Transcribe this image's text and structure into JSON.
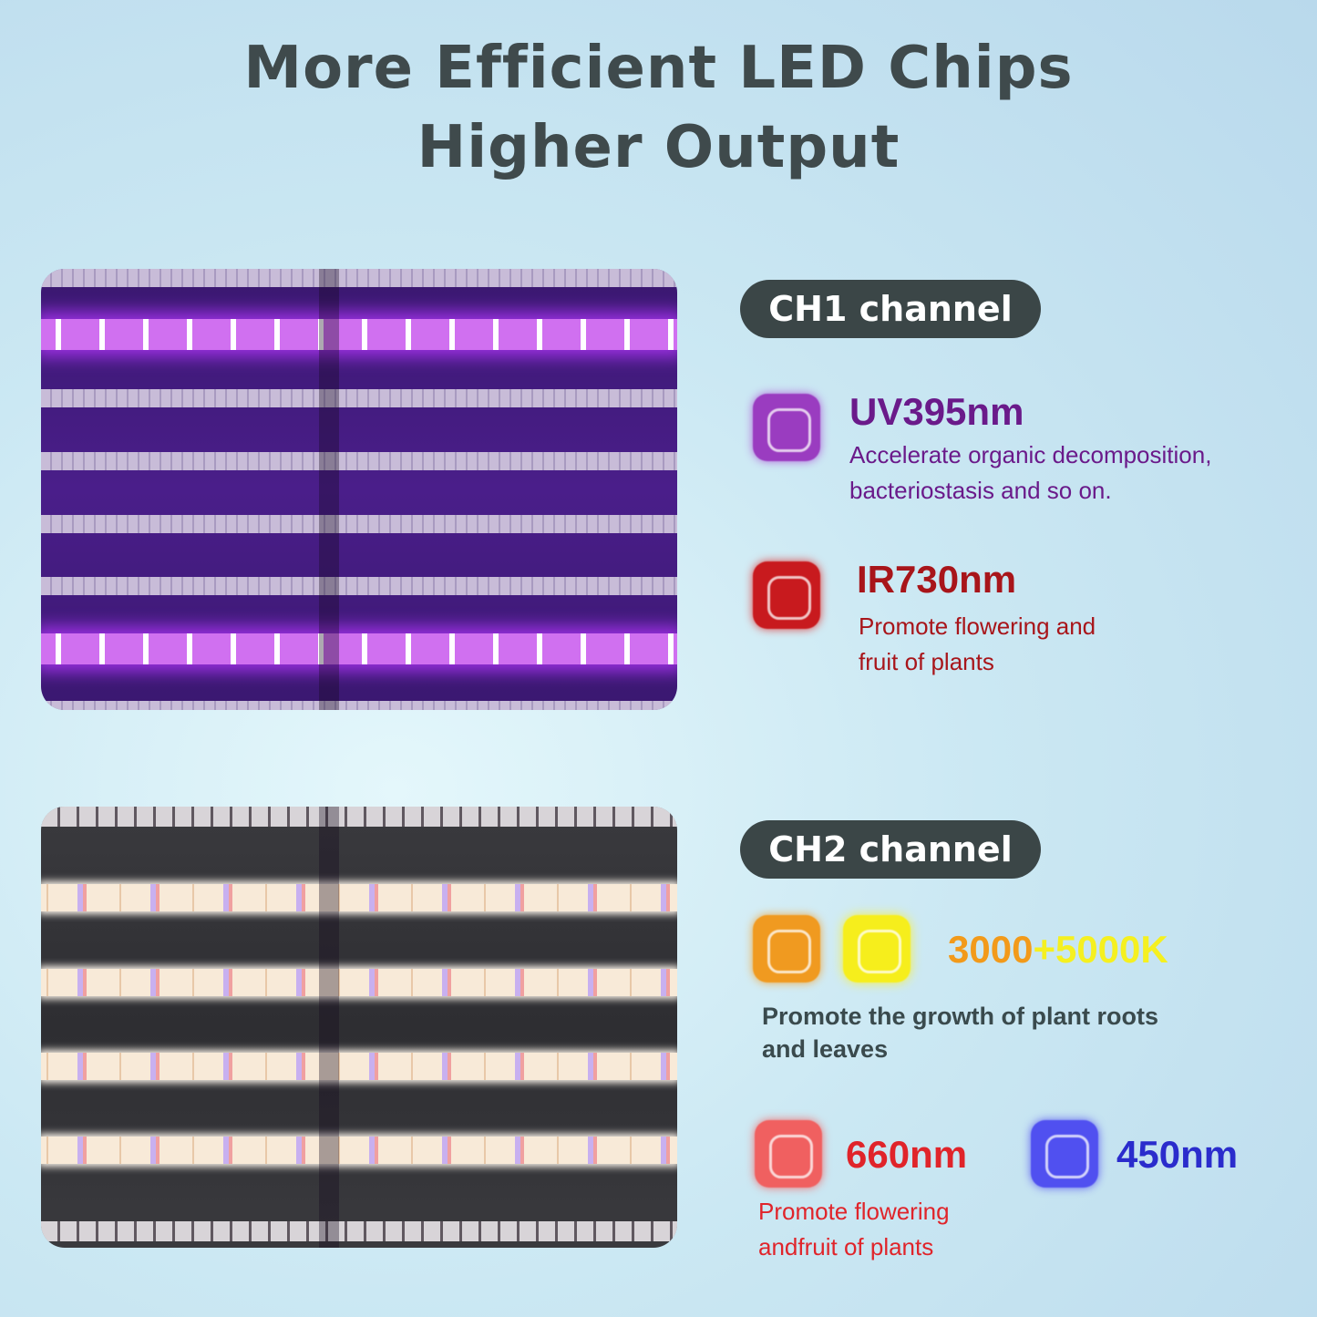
{
  "title": {
    "line1": "More Efficient LED Chips",
    "line2": "Higher Output"
  },
  "ch1": {
    "label": "CH1 channel",
    "items": [
      {
        "name": "UV395nm",
        "desc1": "Accelerate organic decomposition,",
        "desc2": "bacteriostasis and so on.",
        "color": "#6a1a8a",
        "icon": "uv-chip-icon"
      },
      {
        "name": "IR730nm",
        "desc1": "Promote flowering and",
        "desc2": "fruit of plants",
        "color": "#a8151a",
        "icon": "ir-chip-icon"
      }
    ]
  },
  "ch2": {
    "label": "CH2 channel",
    "white": {
      "part1": "3000",
      "part2": "+5000K",
      "desc1": "Promote the growth of plant roots",
      "desc2": "and leaves",
      "color1": "#f29a1a",
      "color2": "#f5f020"
    },
    "red": {
      "name": "660nm",
      "desc1": "Promote flowering",
      "desc2": "andfruit of plants",
      "color": "#e0242a"
    },
    "blue": {
      "name": "450nm",
      "color": "#2a2ccc"
    }
  }
}
